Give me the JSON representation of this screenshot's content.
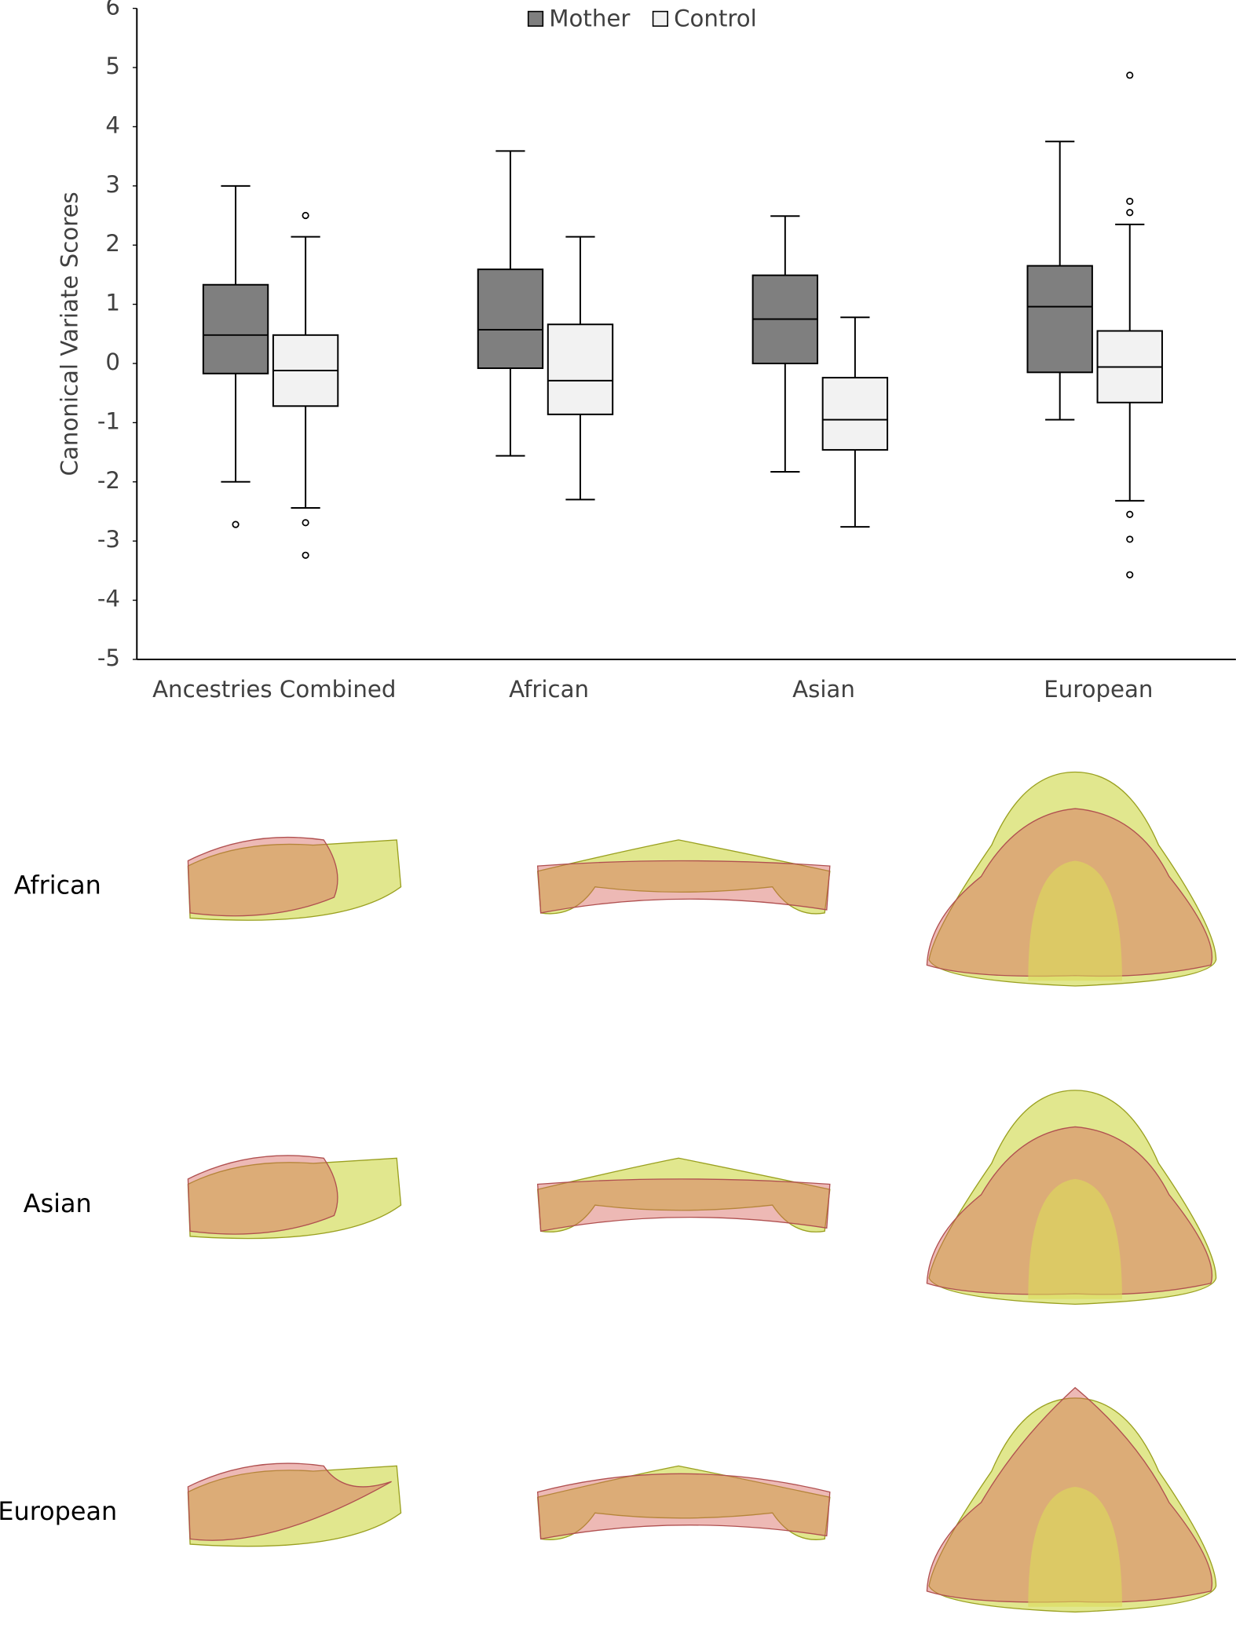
{
  "chart_data": {
    "type": "box",
    "ylabel": "Canonical Variate Scores",
    "categories": [
      "Ancestries Combined",
      "African",
      "Asian",
      "European"
    ],
    "ylim": [
      -5,
      6
    ],
    "yticks": [
      -5,
      -4,
      -3,
      -2,
      -1,
      0,
      1,
      2,
      3,
      4,
      5,
      6
    ],
    "legend": "top",
    "series": [
      {
        "name": "Mother",
        "color": "#7f7f7f",
        "boxes": [
          {
            "min": -2.0,
            "q1": -0.17,
            "median": 0.48,
            "q3": 1.33,
            "max": 3.0,
            "outliers": [
              -2.72
            ]
          },
          {
            "min": -1.56,
            "q1": -0.08,
            "median": 0.57,
            "q3": 1.59,
            "max": 3.59,
            "outliers": []
          },
          {
            "min": -1.83,
            "q1": 0.0,
            "median": 0.75,
            "q3": 1.49,
            "max": 2.49,
            "outliers": []
          },
          {
            "min": -0.95,
            "q1": -0.15,
            "median": 0.96,
            "q3": 1.65,
            "max": 3.75,
            "outliers": []
          }
        ]
      },
      {
        "name": "Control",
        "color": "#f2f2f2",
        "boxes": [
          {
            "min": -2.44,
            "q1": -0.72,
            "median": -0.12,
            "q3": 0.48,
            "max": 2.14,
            "outliers": [
              2.5,
              -2.69,
              -3.24
            ]
          },
          {
            "min": -2.3,
            "q1": -0.86,
            "median": -0.29,
            "q3": 0.66,
            "max": 2.14,
            "outliers": []
          },
          {
            "min": -2.76,
            "q1": -1.46,
            "median": -0.95,
            "q3": -0.24,
            "max": 0.78,
            "outliers": []
          },
          {
            "min": -2.32,
            "q1": -0.66,
            "median": -0.06,
            "q3": 0.55,
            "max": 2.35,
            "outliers": [
              4.87,
              2.74,
              2.55,
              -2.55,
              -2.97,
              -3.57
            ]
          }
        ]
      }
    ]
  },
  "panels": {
    "rows": [
      "African",
      "Asian",
      "European"
    ]
  }
}
